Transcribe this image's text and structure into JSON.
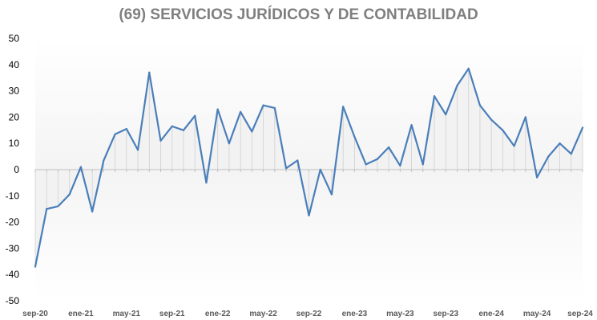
{
  "chart_data": {
    "type": "line",
    "title": "(69) SERVICIOS JURÍDICOS Y DE CONTABILIDAD",
    "xlabel": "",
    "ylabel": "",
    "ylim": [
      -50,
      50
    ],
    "yticks": [
      50,
      40,
      30,
      20,
      10,
      0,
      -10,
      -20,
      -30,
      -40,
      -50
    ],
    "xtick_labels": [
      "sep-20",
      "ene-21",
      "may-21",
      "sep-21",
      "ene-22",
      "may-22",
      "sep-22",
      "ene-23",
      "may-23",
      "sep-23",
      "ene-24",
      "may-24",
      "sep-24"
    ],
    "xtick_every": 4,
    "series": [
      {
        "name": "(69) Servicios jurídicos y de contabilidad",
        "color": "#4a7eba",
        "values": [
          -37,
          -15,
          -14,
          -9.5,
          1,
          -16,
          3.5,
          13.5,
          15.5,
          7.5,
          37,
          11,
          16.5,
          15,
          20.5,
          -5,
          23,
          10,
          22,
          14.5,
          24.5,
          23.5,
          0.5,
          3.5,
          -17.5,
          0,
          -9.5,
          24,
          12.5,
          2,
          4,
          8.5,
          1.5,
          17,
          2,
          28,
          21,
          32,
          38.5,
          24.5,
          19,
          15,
          9,
          20,
          -3,
          5,
          10,
          6,
          16
        ]
      }
    ],
    "area_fill_color": "#f2f2f2",
    "drop_line_color": "#d0d0d0",
    "grid": false
  }
}
